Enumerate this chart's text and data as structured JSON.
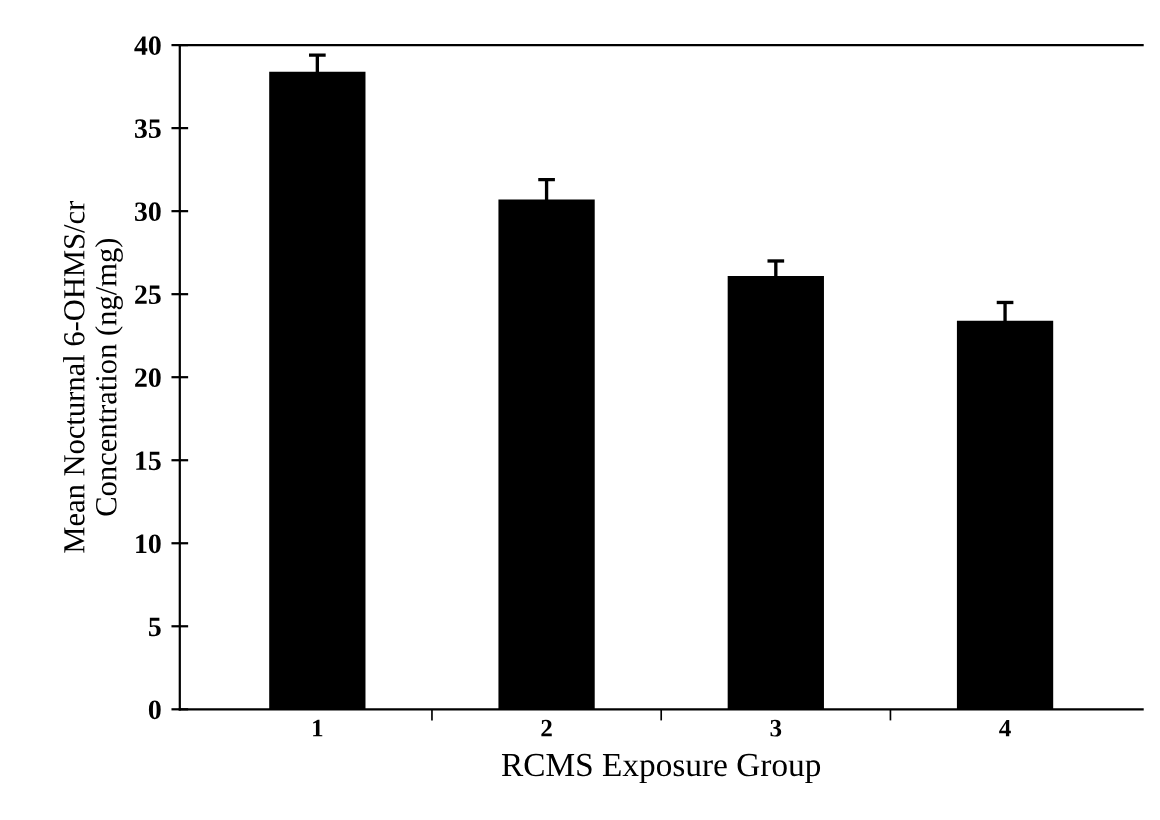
{
  "chart_data": {
    "type": "bar",
    "xlabel": "RCMS Exposure Group",
    "ylabel": "Mean Nocturnal 6-OHMS/cr\nConcentration (ng/mg)",
    "categories": [
      "1",
      "2",
      "3",
      "4"
    ],
    "values": [
      38.4,
      30.7,
      26.1,
      23.4
    ],
    "errors": [
      1.0,
      1.2,
      0.9,
      1.1
    ],
    "color": "#000000",
    "ylim": [
      0,
      40
    ],
    "yticks": [
      0,
      5,
      10,
      15,
      20,
      25,
      30,
      35,
      40
    ],
    "grid": false,
    "legend": false
  }
}
